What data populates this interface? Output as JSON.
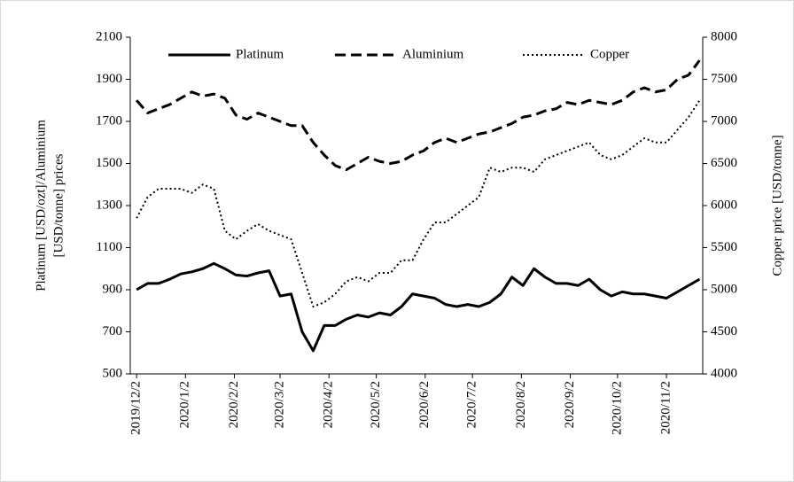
{
  "chart_data": {
    "type": "line",
    "x": [
      "2019/12/2",
      "2019/12/9",
      "2019/12/16",
      "2019/12/23",
      "2019/12/30",
      "2020/1/6",
      "2020/1/13",
      "2020/1/20",
      "2020/1/27",
      "2020/2/3",
      "2020/2/10",
      "2020/2/17",
      "2020/2/24",
      "2020/3/2",
      "2020/3/9",
      "2020/3/16",
      "2020/3/23",
      "2020/3/30",
      "2020/4/6",
      "2020/4/13",
      "2020/4/20",
      "2020/4/27",
      "2020/5/4",
      "2020/5/11",
      "2020/5/18",
      "2020/5/25",
      "2020/6/1",
      "2020/6/8",
      "2020/6/15",
      "2020/6/22",
      "2020/6/29",
      "2020/7/6",
      "2020/7/13",
      "2020/7/20",
      "2020/7/27",
      "2020/8/3",
      "2020/8/10",
      "2020/8/17",
      "2020/8/24",
      "2020/8/31",
      "2020/9/7",
      "2020/9/14",
      "2020/9/21",
      "2020/9/28",
      "2020/10/5",
      "2020/10/12",
      "2020/10/19",
      "2020/10/26",
      "2020/11/2",
      "2020/11/9",
      "2020/11/16",
      "2020/11/23"
    ],
    "series": [
      {
        "name": "Platinum",
        "color": "#000000",
        "style": "solid",
        "values": [
          900,
          930,
          930,
          950,
          975,
          985,
          1000,
          1025,
          1000,
          970,
          965,
          980,
          990,
          870,
          880,
          700,
          610,
          730,
          730,
          760,
          780,
          770,
          790,
          780,
          820,
          880,
          870,
          860,
          830,
          820,
          830,
          820,
          840,
          880,
          960,
          920,
          1000,
          960,
          930,
          930,
          920,
          950,
          900,
          870,
          890,
          880,
          880,
          870,
          860,
          890,
          920,
          950
        ]
      },
      {
        "name": "Aluminium",
        "color": "#000000",
        "style": "dashed",
        "values": [
          1800,
          1740,
          1760,
          1780,
          1810,
          1840,
          1820,
          1830,
          1810,
          1730,
          1710,
          1740,
          1720,
          1700,
          1680,
          1680,
          1600,
          1540,
          1490,
          1470,
          1500,
          1530,
          1510,
          1500,
          1510,
          1540,
          1560,
          1600,
          1620,
          1600,
          1620,
          1640,
          1650,
          1670,
          1690,
          1720,
          1730,
          1750,
          1760,
          1790,
          1780,
          1800,
          1790,
          1780,
          1800,
          1840,
          1860,
          1840,
          1850,
          1900,
          1920,
          1990
        ]
      },
      {
        "name": "Copper",
        "color": "#000000",
        "style": "dotted",
        "axis": "y2",
        "values": [
          5850,
          6100,
          6200,
          6200,
          6200,
          6150,
          6250,
          6200,
          5700,
          5600,
          5700,
          5780,
          5700,
          5650,
          5600,
          5200,
          4800,
          4850,
          4950,
          5100,
          5150,
          5100,
          5200,
          5200,
          5350,
          5350,
          5600,
          5800,
          5800,
          5900,
          6000,
          6100,
          6450,
          6400,
          6450,
          6450,
          6400,
          6550,
          6600,
          6650,
          6700,
          6750,
          6600,
          6550,
          6600,
          6700,
          6800,
          6750,
          6750,
          6900,
          7050,
          7250
        ]
      }
    ],
    "xlim": [
      "2019/11/28",
      "2020/11/25"
    ],
    "xticks": [
      "2019/12/2",
      "2020/1/2",
      "2020/2/2",
      "2020/3/2",
      "2020/4/2",
      "2020/5/2",
      "2020/6/2",
      "2020/7/2",
      "2020/8/2",
      "2020/9/2",
      "2020/10/2",
      "2020/11/2"
    ],
    "ylim": [
      500,
      2100
    ],
    "yticks": [
      500,
      700,
      900,
      1100,
      1300,
      1500,
      1700,
      1900,
      2100
    ],
    "y2lim": [
      4000,
      8000
    ],
    "y2ticks": [
      4000,
      4500,
      5000,
      5500,
      6000,
      6500,
      7000,
      7500,
      8000
    ],
    "y_label": [
      "Platinum [USD/ozt]/Aluminium",
      "[USD/tonne] prices"
    ],
    "y2_label": "Copper price [USD/tonne]",
    "legend": "top"
  }
}
